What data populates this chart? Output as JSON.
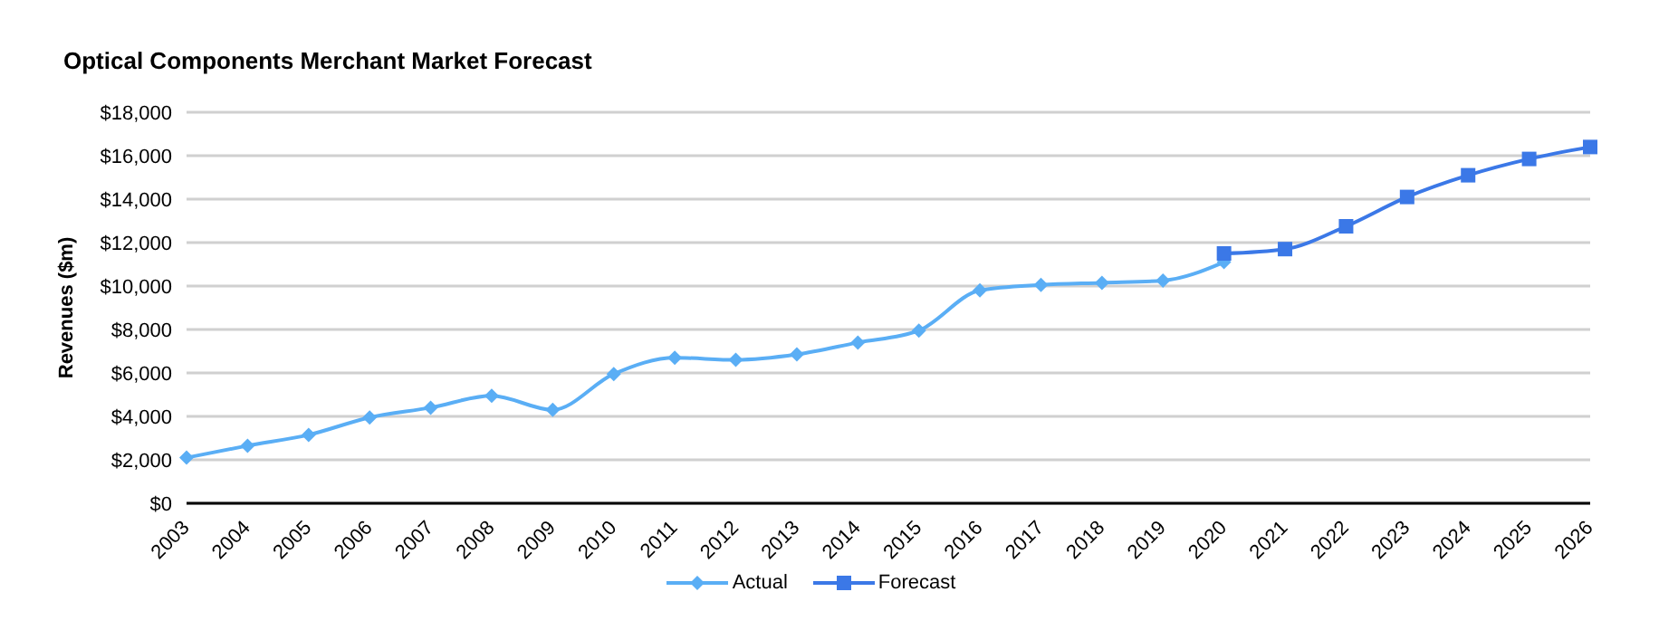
{
  "chart_data": {
    "type": "line",
    "title": "Optical Components Merchant Market Forecast",
    "ylabel": "Revenues ($m)",
    "categories": [
      "2003",
      "2004",
      "2005",
      "2006",
      "2007",
      "2008",
      "2009",
      "2010",
      "2011",
      "2012",
      "2013",
      "2014",
      "2015",
      "2016",
      "2017",
      "2018",
      "2019",
      "2020",
      "2021",
      "2022",
      "2023",
      "2024",
      "2025",
      "2026"
    ],
    "series": [
      {
        "name": "Actual",
        "color": "#5aaef5",
        "marker": "diamond",
        "values": [
          2100,
          2650,
          3150,
          3950,
          4400,
          4950,
          4300,
          5950,
          6700,
          6600,
          6850,
          7400,
          7950,
          9800,
          10050,
          10150,
          10250,
          11100,
          null,
          null,
          null,
          null,
          null,
          null
        ]
      },
      {
        "name": "Forecast",
        "color": "#3b78e7",
        "marker": "square",
        "values": [
          null,
          null,
          null,
          null,
          null,
          null,
          null,
          null,
          null,
          null,
          null,
          null,
          null,
          null,
          null,
          null,
          null,
          11500,
          11700,
          12750,
          14100,
          15100,
          15850,
          16400
        ]
      }
    ],
    "ylim": [
      0,
      18000
    ],
    "yticks": [
      {
        "value": 0,
        "label": "$0"
      },
      {
        "value": 2000,
        "label": "$2,000"
      },
      {
        "value": 4000,
        "label": "$4,000"
      },
      {
        "value": 6000,
        "label": "$6,000"
      },
      {
        "value": 8000,
        "label": "$8,000"
      },
      {
        "value": 10000,
        "label": "$10,000"
      },
      {
        "value": 12000,
        "label": "$12,000"
      },
      {
        "value": 14000,
        "label": "$14,000"
      },
      {
        "value": 16000,
        "label": "$16,000"
      },
      {
        "value": 18000,
        "label": "$18,000"
      }
    ],
    "grid": "y",
    "legend": "bottom"
  }
}
